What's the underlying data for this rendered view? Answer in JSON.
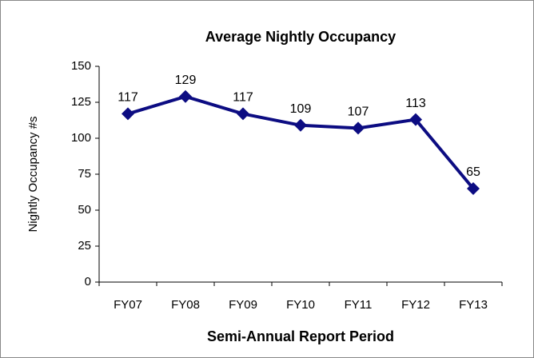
{
  "chart_data": {
    "type": "line",
    "title": "Average Nightly Occupancy",
    "x_label": "Semi-Annual Report Period",
    "y_label": "Nightly Occupancy #s",
    "categories": [
      "FY07",
      "FY08",
      "FY09",
      "FY10",
      "FY11",
      "FY12",
      "FY13"
    ],
    "series": [
      {
        "name": "Average Nightly Occupancy",
        "color": "#0c0c82",
        "values": [
          117,
          129,
          117,
          109,
          107,
          113,
          65
        ]
      }
    ],
    "ylim": [
      0,
      150
    ],
    "yticks": [
      0,
      25,
      50,
      75,
      100,
      125,
      150
    ],
    "grid": false
  }
}
